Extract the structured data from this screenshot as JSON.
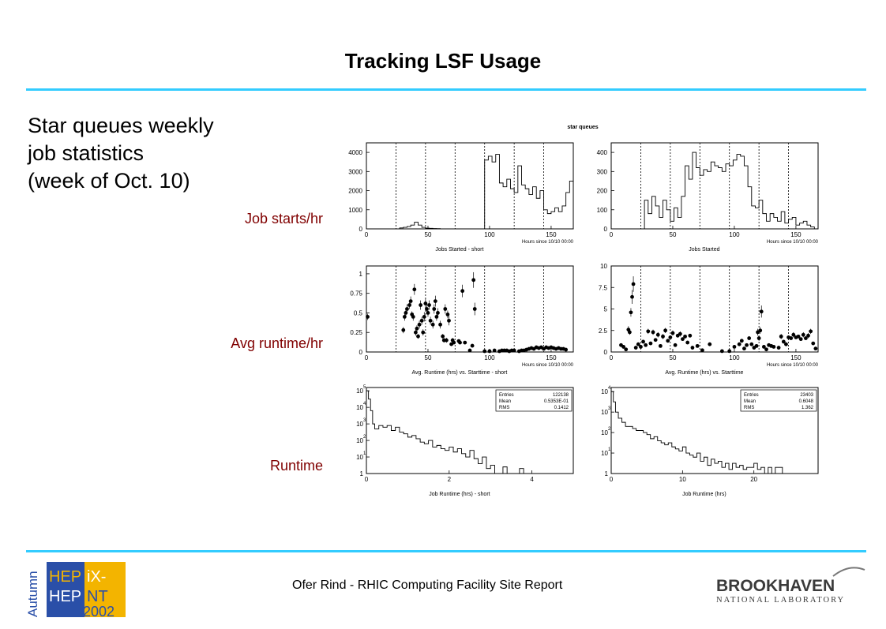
{
  "slide": {
    "title": "Tracking LSF Usage",
    "subtitle_lines": [
      "Star queues weekly",
      "job statistics",
      "(week of Oct. 10)"
    ],
    "row_labels": [
      "Job starts/hr",
      "Avg runtime/hr",
      "Runtime"
    ],
    "footer": "Ofer Rind - RHIC Computing Facility Site Report",
    "figure_title": "star queues"
  },
  "logos": {
    "hepix": {
      "side": "Autumn",
      "line1a": "HEP",
      "line1b": "iX-",
      "line2a": "HEP",
      "line2b": "NT",
      "year": "2002"
    },
    "bnl": {
      "name": "BROOKHAVEN",
      "sub": "NATIONAL LABORATORY"
    }
  },
  "colors": {
    "accent_rule": "#33ccff",
    "row_label": "#800000",
    "hepix_blue": "#2a4fa8",
    "hepix_yellow": "#f3b400",
    "bnl_text": "#3a3a3a"
  },
  "chart_data": [
    {
      "id": "starts_short",
      "type": "line",
      "step": true,
      "caption": "Jobs Started - short",
      "xlabel": "Hours since 10/10 00:00",
      "xlim": [
        0,
        168
      ],
      "ylim": [
        0,
        4500
      ],
      "xticks": [
        0,
        50,
        100,
        150
      ],
      "yticks": [
        0,
        1000,
        2000,
        3000,
        4000
      ],
      "vlines": [
        24,
        48,
        72,
        96,
        120,
        144
      ],
      "x": [
        0,
        3,
        6,
        9,
        12,
        15,
        18,
        21,
        24,
        27,
        30,
        33,
        36,
        39,
        42,
        45,
        48,
        51,
        54,
        57,
        60,
        63,
        66,
        69,
        72,
        75,
        78,
        81,
        84,
        87,
        90,
        93,
        96,
        99,
        102,
        105,
        108,
        111,
        114,
        117,
        120,
        123,
        126,
        129,
        132,
        135,
        138,
        141,
        144,
        147,
        150,
        153,
        156,
        159,
        162,
        165,
        168
      ],
      "y": [
        0,
        0,
        0,
        0,
        0,
        0,
        0,
        0,
        0,
        50,
        80,
        120,
        200,
        350,
        200,
        80,
        40,
        30,
        20,
        10,
        0,
        0,
        0,
        0,
        0,
        0,
        0,
        0,
        0,
        0,
        0,
        0,
        3600,
        3800,
        3500,
        3900,
        2400,
        2200,
        2600,
        2100,
        1900,
        3300,
        2300,
        2100,
        1800,
        2200,
        1600,
        2000,
        1000,
        800,
        900,
        1100,
        900,
        1200,
        1900,
        2500,
        2500
      ]
    },
    {
      "id": "starts_all",
      "type": "line",
      "step": true,
      "caption": "Jobs Started",
      "xlabel": "Hours since 10/10 00:00",
      "xlim": [
        0,
        168
      ],
      "ylim": [
        0,
        450
      ],
      "xticks": [
        0,
        50,
        100,
        150
      ],
      "yticks": [
        0,
        100,
        200,
        300,
        400
      ],
      "vlines": [
        24,
        48,
        72,
        96,
        120,
        144
      ],
      "x": [
        0,
        3,
        6,
        9,
        12,
        15,
        18,
        21,
        24,
        27,
        30,
        33,
        36,
        39,
        42,
        45,
        48,
        51,
        54,
        57,
        60,
        63,
        66,
        69,
        72,
        75,
        78,
        81,
        84,
        87,
        90,
        93,
        96,
        99,
        102,
        105,
        108,
        111,
        114,
        117,
        120,
        123,
        126,
        129,
        132,
        135,
        138,
        141,
        144,
        147,
        150,
        153,
        156,
        159,
        162,
        165,
        168
      ],
      "y": [
        0,
        0,
        0,
        0,
        0,
        0,
        0,
        0,
        0,
        150,
        80,
        170,
        120,
        60,
        150,
        100,
        40,
        110,
        60,
        170,
        330,
        260,
        400,
        320,
        280,
        310,
        300,
        350,
        330,
        320,
        300,
        340,
        330,
        360,
        390,
        380,
        330,
        220,
        120,
        110,
        150,
        80,
        40,
        80,
        60,
        40,
        90,
        30,
        50,
        60,
        20,
        30,
        40,
        20,
        10,
        0,
        0
      ]
    },
    {
      "id": "runtime_short",
      "type": "scatter",
      "errorbars": true,
      "caption": "Avg. Runtime (hrs) vs. Starttime - short",
      "xlabel": "Hours since 10/10 00:00",
      "xlim": [
        0,
        168
      ],
      "ylim": [
        0,
        1.1
      ],
      "xticks": [
        0,
        50,
        100,
        150
      ],
      "yticks": [
        0,
        0.25,
        0.5,
        0.75,
        1
      ],
      "vlines": [
        24,
        48,
        72,
        96,
        120,
        144
      ],
      "x": [
        1,
        30,
        31,
        32,
        33,
        35,
        36,
        37,
        38,
        39,
        40,
        41,
        42,
        43,
        44,
        45,
        46,
        47,
        48,
        49,
        50,
        51,
        52,
        54,
        55,
        56,
        57,
        58,
        60,
        62,
        63,
        64,
        65,
        66,
        67,
        69,
        70,
        71,
        75,
        76,
        78,
        80,
        84,
        86,
        87,
        88,
        96,
        100,
        104,
        108,
        110,
        112,
        114,
        116,
        118,
        120,
        124,
        126,
        128,
        130,
        132,
        134,
        136,
        138,
        140,
        142,
        144,
        146,
        148,
        150,
        152,
        154,
        156,
        158,
        160,
        162
      ],
      "y": [
        0.45,
        0.28,
        0.45,
        0.5,
        0.55,
        0.6,
        0.65,
        0.48,
        0.45,
        0.8,
        0.25,
        0.3,
        0.2,
        0.35,
        0.6,
        0.4,
        0.25,
        0.45,
        0.62,
        0.55,
        0.5,
        0.6,
        0.4,
        0.35,
        0.55,
        0.65,
        0.45,
        0.5,
        0.35,
        0.2,
        0.15,
        0.55,
        0.15,
        0.48,
        0.4,
        0.1,
        0.15,
        0.12,
        0.14,
        0.12,
        0.78,
        0.12,
        0.02,
        0.08,
        0.92,
        0.55,
        0.01,
        0.01,
        0.02,
        0.01,
        0.02,
        0.02,
        0.02,
        0.01,
        0.02,
        0.02,
        0.01,
        0.02,
        0.02,
        0.03,
        0.04,
        0.05,
        0.04,
        0.06,
        0.05,
        0.06,
        0.04,
        0.06,
        0.05,
        0.06,
        0.05,
        0.04,
        0.05,
        0.04,
        0.04,
        0.03
      ],
      "err": [
        0.04,
        0.04,
        0.05,
        0.05,
        0.06,
        0.05,
        0.06,
        0.04,
        0.05,
        0.07,
        0.04,
        0.04,
        0.03,
        0.05,
        0.06,
        0.05,
        0.04,
        0.06,
        0.07,
        0.06,
        0.05,
        0.06,
        0.05,
        0.05,
        0.06,
        0.07,
        0.05,
        0.06,
        0.05,
        0.03,
        0.03,
        0.06,
        0.03,
        0.05,
        0.06,
        0.02,
        0.03,
        0.02,
        0.02,
        0.02,
        0.08,
        0.02,
        0,
        0.02,
        0.1,
        0.08,
        0,
        0,
        0,
        0,
        0,
        0,
        0,
        0,
        0,
        0,
        0,
        0,
        0,
        0,
        0,
        0,
        0,
        0,
        0,
        0,
        0,
        0,
        0,
        0,
        0,
        0,
        0,
        0,
        0,
        0
      ]
    },
    {
      "id": "runtime_all",
      "type": "scatter",
      "errorbars": true,
      "caption": "Avg. Runtime (hrs) vs. Starttime",
      "xlabel": "Hours since 10/10 00:00",
      "xlim": [
        0,
        168
      ],
      "ylim": [
        0,
        10
      ],
      "xticks": [
        0,
        50,
        100,
        150
      ],
      "yticks": [
        0,
        2.5,
        5,
        7.5,
        10
      ],
      "vlines": [
        24,
        48,
        72,
        96,
        120,
        144
      ],
      "x": [
        8,
        10,
        12,
        14,
        15,
        16,
        17,
        18,
        20,
        22,
        24,
        26,
        28,
        30,
        32,
        34,
        36,
        38,
        40,
        42,
        44,
        46,
        48,
        50,
        52,
        54,
        56,
        58,
        60,
        62,
        64,
        66,
        70,
        74,
        80,
        90,
        96,
        100,
        104,
        106,
        108,
        110,
        112,
        114,
        116,
        118,
        119,
        120,
        121,
        122,
        124,
        126,
        128,
        130,
        132,
        136,
        138,
        140,
        142,
        144,
        146,
        148,
        150,
        152,
        154,
        156,
        158,
        160,
        162,
        164,
        166
      ],
      "y": [
        0.8,
        0.6,
        0.3,
        2.6,
        2.3,
        4.6,
        6.4,
        7.9,
        0.5,
        0.9,
        0.6,
        1.2,
        0.8,
        2.4,
        1.0,
        2.3,
        1.4,
        2.0,
        0.7,
        1.8,
        2.5,
        1.3,
        1.7,
        2.2,
        0.8,
        1.9,
        2.1,
        1.5,
        1.8,
        1.1,
        1.9,
        0.5,
        0.7,
        0.2,
        0.9,
        0.1,
        0.1,
        0.6,
        0.9,
        1.3,
        0.4,
        0.8,
        1.6,
        0.9,
        0.5,
        0.7,
        2.3,
        1.6,
        2.5,
        4.7,
        0.6,
        0.3,
        0.8,
        0.7,
        0.6,
        0.5,
        1.8,
        1.2,
        0.9,
        1.7,
        1.6,
        2.0,
        1.7,
        1.8,
        1.5,
        2.0,
        1.6,
        1.9,
        2.4,
        1.0,
        0.4
      ],
      "err": [
        0.2,
        0.2,
        0.1,
        0.4,
        0.3,
        0.5,
        0.8,
        0.9,
        0.1,
        0.2,
        0.1,
        0.2,
        0.2,
        0.3,
        0.2,
        0.3,
        0.2,
        0.3,
        0.1,
        0.3,
        0.3,
        0.2,
        0.2,
        0.3,
        0.1,
        0.2,
        0.3,
        0.2,
        0.2,
        0.2,
        0.2,
        0.1,
        0.1,
        0.1,
        0.1,
        0.1,
        0.1,
        0.1,
        0.2,
        0.2,
        0.1,
        0.2,
        0.2,
        0.2,
        0.1,
        0.1,
        0.4,
        0.3,
        0.4,
        0.7,
        0.1,
        0.1,
        0.2,
        0.1,
        0.1,
        0.1,
        0.3,
        0.2,
        0.2,
        0.2,
        0.2,
        0.3,
        0.2,
        0.2,
        0.2,
        0.3,
        0.2,
        0.3,
        0.3,
        0.2,
        0.1
      ]
    },
    {
      "id": "hist_short",
      "type": "histogram",
      "log_y": true,
      "caption": "Job Runtime (hrs) - short",
      "xlim": [
        0,
        5
      ],
      "ylim_log10": [
        0,
        5.2
      ],
      "xticks": [
        0,
        2,
        4
      ],
      "yticks_log10": [
        0,
        1,
        2,
        3,
        4,
        5
      ],
      "stats": [
        [
          "Entries",
          "122138"
        ],
        [
          "Mean",
          "0.5353E-01"
        ],
        [
          "RMS",
          "0.1412"
        ]
      ],
      "x": [
        0,
        0.05,
        0.1,
        0.15,
        0.2,
        0.3,
        0.4,
        0.5,
        0.6,
        0.7,
        0.8,
        0.9,
        1.0,
        1.1,
        1.2,
        1.3,
        1.4,
        1.5,
        1.6,
        1.7,
        1.8,
        1.9,
        2.0,
        2.1,
        2.2,
        2.3,
        2.4,
        2.5,
        2.6,
        2.7,
        2.8,
        2.9,
        3.0,
        3.1,
        3.2,
        3.3,
        3.4,
        3.5,
        3.6,
        3.7,
        3.8,
        3.9,
        4.0,
        4.1,
        4.2,
        4.3,
        4.4,
        4.5,
        4.6,
        4.7,
        4.8,
        4.9,
        5.0
      ],
      "y_log10": [
        5.0,
        4.5,
        3.8,
        3.0,
        2.7,
        2.9,
        2.8,
        2.9,
        2.6,
        2.8,
        2.5,
        2.4,
        2.2,
        2.3,
        2.1,
        1.9,
        1.8,
        2.0,
        1.6,
        1.7,
        1.5,
        1.4,
        1.6,
        1.3,
        1.5,
        1.2,
        1.0,
        1.4,
        0.9,
        0.6,
        1.0,
        0.3,
        0.5,
        0,
        0,
        0.4,
        0,
        0,
        0,
        0.3,
        0,
        0,
        0,
        0,
        0,
        0,
        0,
        0,
        0,
        0,
        0,
        0,
        0
      ]
    },
    {
      "id": "hist_all",
      "type": "histogram",
      "log_y": true,
      "caption": "Job Runtime (hrs)",
      "xlim": [
        0,
        29
      ],
      "ylim_log10": [
        0,
        4.2
      ],
      "xticks": [
        0,
        10,
        20
      ],
      "yticks_log10": [
        0,
        1,
        2,
        3,
        4
      ],
      "stats": [
        [
          "Entries",
          "23403"
        ],
        [
          "Mean",
          "0.6048"
        ],
        [
          "RMS",
          "1.362"
        ]
      ],
      "x": [
        0,
        0.3,
        0.6,
        1,
        1.5,
        2,
        2.5,
        3,
        3.5,
        4,
        4.5,
        5,
        5.5,
        6,
        6.5,
        7,
        7.5,
        8,
        8.5,
        9,
        9.5,
        10,
        10.5,
        11,
        11.5,
        12,
        12.5,
        13,
        13.5,
        14,
        14.5,
        15,
        15.5,
        16,
        16.5,
        17,
        17.5,
        18,
        18.5,
        19,
        19.5,
        20,
        20.5,
        21,
        21.5,
        22,
        22.5,
        23,
        24,
        25,
        26,
        27,
        28,
        29
      ],
      "y_log10": [
        4.0,
        3.5,
        3.0,
        2.7,
        2.5,
        2.3,
        2.3,
        2.2,
        2.1,
        2.1,
        2.0,
        1.9,
        1.7,
        1.8,
        1.6,
        1.5,
        1.4,
        1.5,
        1.3,
        1.2,
        1.1,
        1.3,
        1.0,
        0.9,
        0.8,
        1.0,
        0.6,
        0.8,
        0.4,
        0.7,
        0.5,
        0.6,
        0.3,
        0.5,
        0.2,
        0.5,
        0.3,
        0.4,
        0.2,
        0.3,
        0.3,
        0.5,
        0.2,
        0.3,
        0,
        0.3,
        0,
        0.3,
        0,
        0,
        0,
        0,
        0,
        0
      ]
    }
  ]
}
